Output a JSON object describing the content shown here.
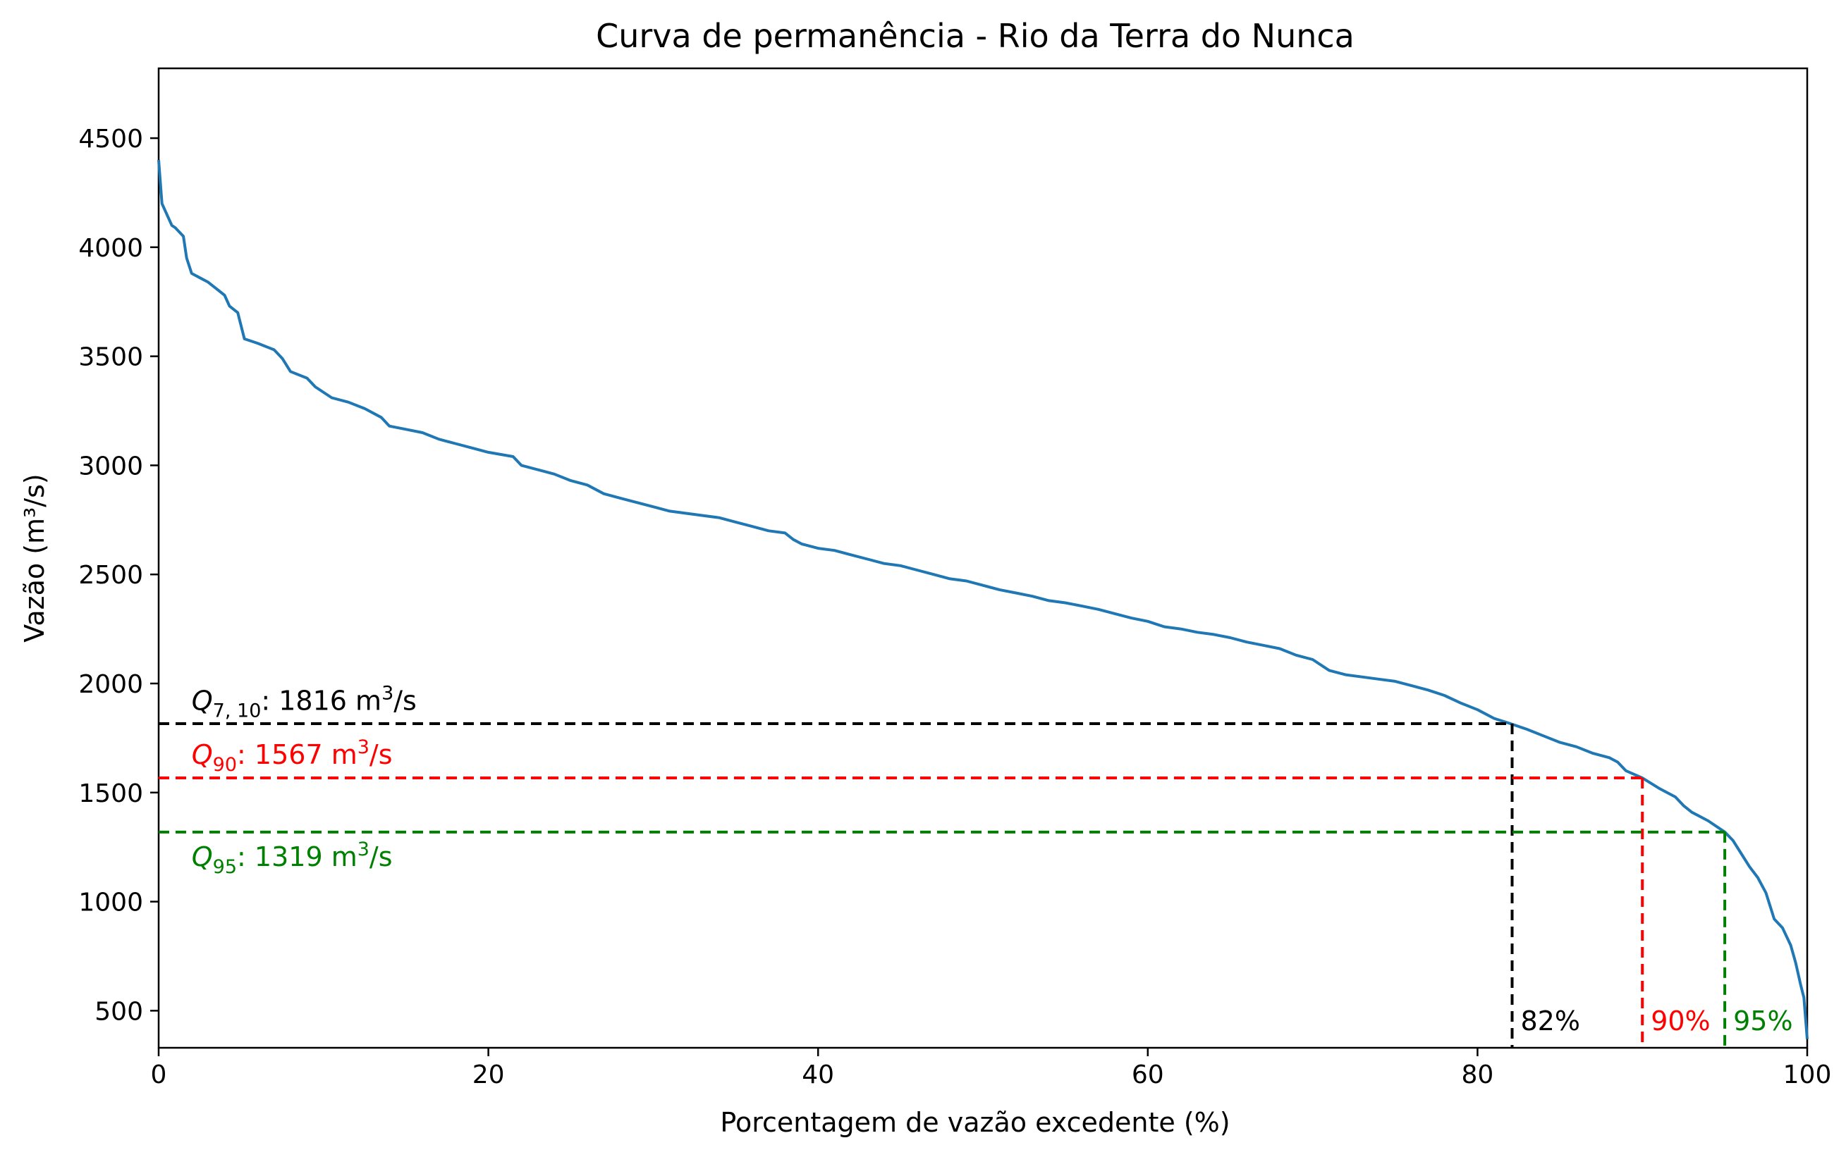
{
  "chart_data": {
    "type": "line",
    "title": "Curva de permanência - Rio da Terra do Nunca",
    "xlabel": "Porcentagem de vazão excedente (%)",
    "ylabel": "Vazão (m³/s)",
    "xlim": [
      0,
      100
    ],
    "ylim": [
      330,
      4820
    ],
    "xticks": [
      0,
      20,
      40,
      60,
      80,
      100
    ],
    "yticks": [
      500,
      1000,
      1500,
      2000,
      2500,
      3000,
      3500,
      4000,
      4500
    ],
    "grid": false,
    "series": [
      {
        "color": "#1f77b4",
        "points": [
          [
            0,
            4400
          ],
          [
            0.2,
            4200
          ],
          [
            0.5,
            4150
          ],
          [
            0.8,
            4100
          ],
          [
            1,
            4090
          ],
          [
            1.5,
            4050
          ],
          [
            1.7,
            3950
          ],
          [
            2,
            3880
          ],
          [
            2.5,
            3860
          ],
          [
            3,
            3840
          ],
          [
            3.5,
            3810
          ],
          [
            4,
            3780
          ],
          [
            4.3,
            3730
          ],
          [
            4.8,
            3700
          ],
          [
            5.2,
            3580
          ],
          [
            6,
            3560
          ],
          [
            7,
            3530
          ],
          [
            7.5,
            3490
          ],
          [
            8,
            3430
          ],
          [
            9,
            3400
          ],
          [
            9.5,
            3360
          ],
          [
            10.5,
            3310
          ],
          [
            11.5,
            3290
          ],
          [
            12.5,
            3260
          ],
          [
            13.5,
            3220
          ],
          [
            14,
            3180
          ],
          [
            15,
            3165
          ],
          [
            16,
            3150
          ],
          [
            17,
            3120
          ],
          [
            18,
            3100
          ],
          [
            19,
            3080
          ],
          [
            20,
            3060
          ],
          [
            21.5,
            3040
          ],
          [
            22,
            3000
          ],
          [
            23,
            2980
          ],
          [
            24,
            2960
          ],
          [
            25,
            2930
          ],
          [
            26,
            2910
          ],
          [
            27,
            2870
          ],
          [
            28,
            2850
          ],
          [
            29,
            2830
          ],
          [
            30,
            2810
          ],
          [
            31,
            2790
          ],
          [
            32,
            2780
          ],
          [
            33,
            2770
          ],
          [
            34,
            2760
          ],
          [
            35,
            2740
          ],
          [
            36,
            2720
          ],
          [
            37,
            2700
          ],
          [
            38,
            2690
          ],
          [
            38.5,
            2660
          ],
          [
            39,
            2640
          ],
          [
            40,
            2620
          ],
          [
            41,
            2610
          ],
          [
            42,
            2590
          ],
          [
            43,
            2570
          ],
          [
            44,
            2550
          ],
          [
            45,
            2540
          ],
          [
            46,
            2520
          ],
          [
            47,
            2500
          ],
          [
            48,
            2480
          ],
          [
            49,
            2470
          ],
          [
            50,
            2450
          ],
          [
            51,
            2430
          ],
          [
            52,
            2415
          ],
          [
            53,
            2400
          ],
          [
            54,
            2380
          ],
          [
            55,
            2370
          ],
          [
            56,
            2355
          ],
          [
            57,
            2340
          ],
          [
            58,
            2320
          ],
          [
            59,
            2300
          ],
          [
            60,
            2285
          ],
          [
            61,
            2260
          ],
          [
            62,
            2250
          ],
          [
            63,
            2235
          ],
          [
            64,
            2225
          ],
          [
            65,
            2210
          ],
          [
            66,
            2190
          ],
          [
            67,
            2175
          ],
          [
            68,
            2160
          ],
          [
            69,
            2130
          ],
          [
            70,
            2110
          ],
          [
            71,
            2060
          ],
          [
            72,
            2040
          ],
          [
            73,
            2030
          ],
          [
            74,
            2020
          ],
          [
            75,
            2010
          ],
          [
            76,
            1990
          ],
          [
            77,
            1970
          ],
          [
            78,
            1945
          ],
          [
            79,
            1910
          ],
          [
            80,
            1880
          ],
          [
            81,
            1840
          ],
          [
            82,
            1816
          ],
          [
            83,
            1790
          ],
          [
            84,
            1760
          ],
          [
            85,
            1730
          ],
          [
            86,
            1710
          ],
          [
            87,
            1680
          ],
          [
            88,
            1660
          ],
          [
            88.5,
            1640
          ],
          [
            89,
            1600
          ],
          [
            90,
            1567
          ],
          [
            91,
            1520
          ],
          [
            92,
            1480
          ],
          [
            92.5,
            1440
          ],
          [
            93,
            1410
          ],
          [
            94,
            1370
          ],
          [
            95,
            1319
          ],
          [
            95.5,
            1280
          ],
          [
            96,
            1220
          ],
          [
            96.5,
            1160
          ],
          [
            97,
            1110
          ],
          [
            97.5,
            1040
          ],
          [
            98,
            920
          ],
          [
            98.5,
            880
          ],
          [
            99,
            800
          ],
          [
            99.3,
            720
          ],
          [
            99.6,
            620
          ],
          [
            99.8,
            560
          ],
          [
            100,
            370
          ]
        ]
      }
    ],
    "reference_lines": [
      {
        "label_name": "Q",
        "label_sub": "7, 10",
        "label_rest": ": 1816 m",
        "label_sup": "3",
        "label_tail": "/s",
        "percent_label": "82%",
        "percent": 82.1,
        "flow": 1816,
        "color": "#000000",
        "label_y": 1815,
        "label_position": "above"
      },
      {
        "label_name": "Q",
        "label_sub": "90",
        "label_rest": ": 1567 m",
        "label_sup": "3",
        "label_tail": "/s",
        "percent_label": "90%",
        "percent": 90,
        "flow": 1567,
        "color": "#ff0000",
        "label_y": 1567,
        "label_position": "above"
      },
      {
        "label_name": "Q",
        "label_sub": "95",
        "label_rest": ": 1319 m",
        "label_sup": "3",
        "label_tail": "/s",
        "percent_label": "95%",
        "percent": 95,
        "flow": 1319,
        "color": "#008000",
        "label_y": 1319,
        "label_position": "below"
      }
    ]
  }
}
